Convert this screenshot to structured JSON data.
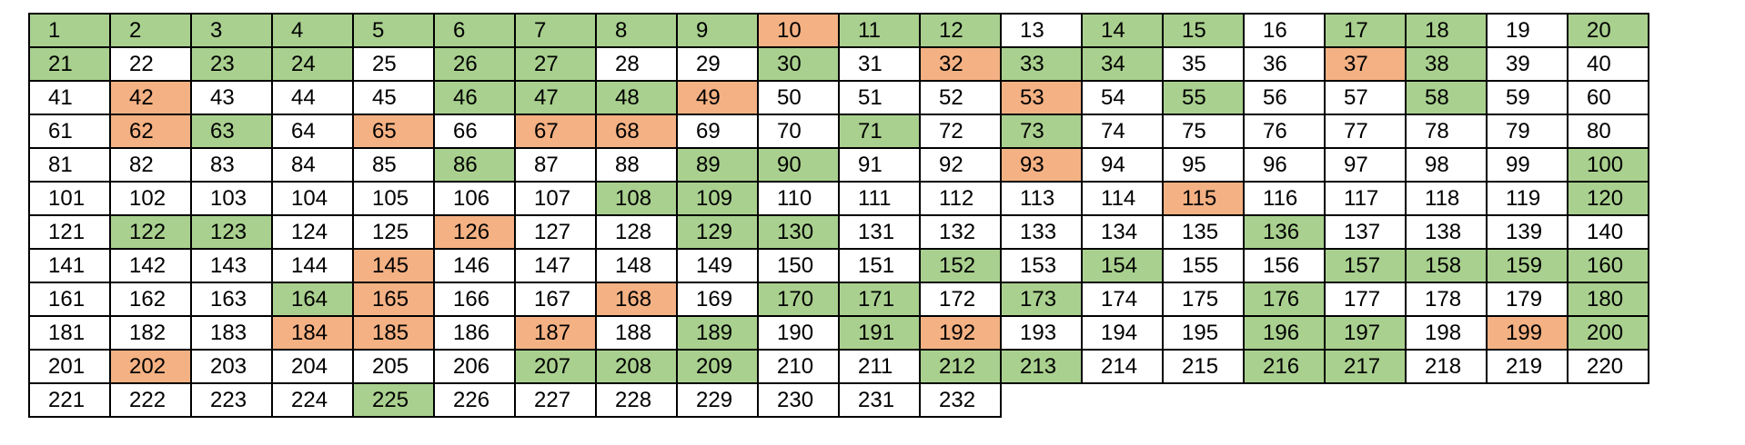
{
  "colors": {
    "green": "#a9d08e",
    "orange": "#f4b183",
    "none": "#ffffff"
  },
  "grid": {
    "rows": [
      [
        {
          "n": "1",
          "c": "green"
        },
        {
          "n": "2",
          "c": "green"
        },
        {
          "n": "3",
          "c": "green"
        },
        {
          "n": "4",
          "c": "green"
        },
        {
          "n": "5",
          "c": "green"
        },
        {
          "n": "6",
          "c": "green"
        },
        {
          "n": "7",
          "c": "green"
        },
        {
          "n": "8",
          "c": "green"
        },
        {
          "n": "9",
          "c": "green"
        },
        {
          "n": "10",
          "c": "orange"
        },
        {
          "n": "11",
          "c": "green"
        },
        {
          "n": "12",
          "c": "green"
        },
        {
          "n": "13",
          "c": "none"
        },
        {
          "n": "14",
          "c": "green"
        },
        {
          "n": "15",
          "c": "green"
        },
        {
          "n": "16",
          "c": "none"
        },
        {
          "n": "17",
          "c": "green"
        },
        {
          "n": "18",
          "c": "green"
        },
        {
          "n": "19",
          "c": "none"
        },
        {
          "n": "20",
          "c": "green"
        }
      ],
      [
        {
          "n": "21",
          "c": "green"
        },
        {
          "n": "22",
          "c": "none"
        },
        {
          "n": "23",
          "c": "green"
        },
        {
          "n": "24",
          "c": "green"
        },
        {
          "n": "25",
          "c": "none"
        },
        {
          "n": "26",
          "c": "green"
        },
        {
          "n": "27",
          "c": "green"
        },
        {
          "n": "28",
          "c": "none"
        },
        {
          "n": "29",
          "c": "none"
        },
        {
          "n": "30",
          "c": "green"
        },
        {
          "n": "31",
          "c": "none"
        },
        {
          "n": "32",
          "c": "orange"
        },
        {
          "n": "33",
          "c": "green"
        },
        {
          "n": "34",
          "c": "green"
        },
        {
          "n": "35",
          "c": "none"
        },
        {
          "n": "36",
          "c": "none"
        },
        {
          "n": "37",
          "c": "orange"
        },
        {
          "n": "38",
          "c": "green"
        },
        {
          "n": "39",
          "c": "none"
        },
        {
          "n": "40",
          "c": "none"
        }
      ],
      [
        {
          "n": "41",
          "c": "none"
        },
        {
          "n": "42",
          "c": "orange"
        },
        {
          "n": "43",
          "c": "none"
        },
        {
          "n": "44",
          "c": "none"
        },
        {
          "n": "45",
          "c": "none"
        },
        {
          "n": "46",
          "c": "green"
        },
        {
          "n": "47",
          "c": "green"
        },
        {
          "n": "48",
          "c": "green"
        },
        {
          "n": "49",
          "c": "orange"
        },
        {
          "n": "50",
          "c": "none"
        },
        {
          "n": "51",
          "c": "none"
        },
        {
          "n": "52",
          "c": "none"
        },
        {
          "n": "53",
          "c": "orange"
        },
        {
          "n": "54",
          "c": "none"
        },
        {
          "n": "55",
          "c": "green"
        },
        {
          "n": "56",
          "c": "none"
        },
        {
          "n": "57",
          "c": "none"
        },
        {
          "n": "58",
          "c": "green"
        },
        {
          "n": "59",
          "c": "none"
        },
        {
          "n": "60",
          "c": "none"
        }
      ],
      [
        {
          "n": "61",
          "c": "none"
        },
        {
          "n": "62",
          "c": "orange"
        },
        {
          "n": "63",
          "c": "green"
        },
        {
          "n": "64",
          "c": "none"
        },
        {
          "n": "65",
          "c": "orange"
        },
        {
          "n": "66",
          "c": "none"
        },
        {
          "n": "67",
          "c": "orange"
        },
        {
          "n": "68",
          "c": "orange"
        },
        {
          "n": "69",
          "c": "none"
        },
        {
          "n": "70",
          "c": "none"
        },
        {
          "n": "71",
          "c": "green"
        },
        {
          "n": "72",
          "c": "none"
        },
        {
          "n": "73",
          "c": "green"
        },
        {
          "n": "74",
          "c": "none"
        },
        {
          "n": "75",
          "c": "none"
        },
        {
          "n": "76",
          "c": "none"
        },
        {
          "n": "77",
          "c": "none"
        },
        {
          "n": "78",
          "c": "none"
        },
        {
          "n": "79",
          "c": "none"
        },
        {
          "n": "80",
          "c": "none"
        }
      ],
      [
        {
          "n": "81",
          "c": "none"
        },
        {
          "n": "82",
          "c": "none"
        },
        {
          "n": "83",
          "c": "none"
        },
        {
          "n": "84",
          "c": "none"
        },
        {
          "n": "85",
          "c": "none"
        },
        {
          "n": "86",
          "c": "green"
        },
        {
          "n": "87",
          "c": "none"
        },
        {
          "n": "88",
          "c": "none"
        },
        {
          "n": "89",
          "c": "green"
        },
        {
          "n": "90",
          "c": "green"
        },
        {
          "n": "91",
          "c": "none"
        },
        {
          "n": "92",
          "c": "none"
        },
        {
          "n": "93",
          "c": "orange"
        },
        {
          "n": "94",
          "c": "none"
        },
        {
          "n": "95",
          "c": "none"
        },
        {
          "n": "96",
          "c": "none"
        },
        {
          "n": "97",
          "c": "none"
        },
        {
          "n": "98",
          "c": "none"
        },
        {
          "n": "99",
          "c": "none"
        },
        {
          "n": "100",
          "c": "green"
        }
      ],
      [
        {
          "n": "101",
          "c": "none"
        },
        {
          "n": "102",
          "c": "none"
        },
        {
          "n": "103",
          "c": "none"
        },
        {
          "n": "104",
          "c": "none"
        },
        {
          "n": "105",
          "c": "none"
        },
        {
          "n": "106",
          "c": "none"
        },
        {
          "n": "107",
          "c": "none"
        },
        {
          "n": "108",
          "c": "green"
        },
        {
          "n": "109",
          "c": "green"
        },
        {
          "n": "110",
          "c": "none"
        },
        {
          "n": "111",
          "c": "none"
        },
        {
          "n": "112",
          "c": "none"
        },
        {
          "n": "113",
          "c": "none"
        },
        {
          "n": "114",
          "c": "none"
        },
        {
          "n": "115",
          "c": "orange"
        },
        {
          "n": "116",
          "c": "none"
        },
        {
          "n": "117",
          "c": "none"
        },
        {
          "n": "118",
          "c": "none"
        },
        {
          "n": "119",
          "c": "none"
        },
        {
          "n": "120",
          "c": "green"
        }
      ],
      [
        {
          "n": "121",
          "c": "none"
        },
        {
          "n": "122",
          "c": "green"
        },
        {
          "n": "123",
          "c": "green"
        },
        {
          "n": "124",
          "c": "none"
        },
        {
          "n": "125",
          "c": "none"
        },
        {
          "n": "126",
          "c": "orange"
        },
        {
          "n": "127",
          "c": "none"
        },
        {
          "n": "128",
          "c": "none"
        },
        {
          "n": "129",
          "c": "green"
        },
        {
          "n": "130",
          "c": "green"
        },
        {
          "n": "131",
          "c": "none"
        },
        {
          "n": "132",
          "c": "none"
        },
        {
          "n": "133",
          "c": "none"
        },
        {
          "n": "134",
          "c": "none"
        },
        {
          "n": "135",
          "c": "none"
        },
        {
          "n": "136",
          "c": "green"
        },
        {
          "n": "137",
          "c": "none"
        },
        {
          "n": "138",
          "c": "none"
        },
        {
          "n": "139",
          "c": "none"
        },
        {
          "n": "140",
          "c": "none"
        }
      ],
      [
        {
          "n": "141",
          "c": "none"
        },
        {
          "n": "142",
          "c": "none"
        },
        {
          "n": "143",
          "c": "none"
        },
        {
          "n": "144",
          "c": "none"
        },
        {
          "n": "145",
          "c": "orange"
        },
        {
          "n": "146",
          "c": "none"
        },
        {
          "n": "147",
          "c": "none"
        },
        {
          "n": "148",
          "c": "none"
        },
        {
          "n": "149",
          "c": "none"
        },
        {
          "n": "150",
          "c": "none"
        },
        {
          "n": "151",
          "c": "none"
        },
        {
          "n": "152",
          "c": "green"
        },
        {
          "n": "153",
          "c": "none"
        },
        {
          "n": "154",
          "c": "green"
        },
        {
          "n": "155",
          "c": "none"
        },
        {
          "n": "156",
          "c": "none"
        },
        {
          "n": "157",
          "c": "green"
        },
        {
          "n": "158",
          "c": "green"
        },
        {
          "n": "159",
          "c": "green"
        },
        {
          "n": "160",
          "c": "green"
        }
      ],
      [
        {
          "n": "161",
          "c": "none"
        },
        {
          "n": "162",
          "c": "none"
        },
        {
          "n": "163",
          "c": "none"
        },
        {
          "n": "164",
          "c": "green"
        },
        {
          "n": "165",
          "c": "orange"
        },
        {
          "n": "166",
          "c": "none"
        },
        {
          "n": "167",
          "c": "none"
        },
        {
          "n": "168",
          "c": "orange"
        },
        {
          "n": "169",
          "c": "none"
        },
        {
          "n": "170",
          "c": "green"
        },
        {
          "n": "171",
          "c": "green"
        },
        {
          "n": "172",
          "c": "none"
        },
        {
          "n": "173",
          "c": "green"
        },
        {
          "n": "174",
          "c": "none"
        },
        {
          "n": "175",
          "c": "none"
        },
        {
          "n": "176",
          "c": "green"
        },
        {
          "n": "177",
          "c": "none"
        },
        {
          "n": "178",
          "c": "none"
        },
        {
          "n": "179",
          "c": "none"
        },
        {
          "n": "180",
          "c": "green"
        }
      ],
      [
        {
          "n": "181",
          "c": "none"
        },
        {
          "n": "182",
          "c": "none"
        },
        {
          "n": "183",
          "c": "none"
        },
        {
          "n": "184",
          "c": "orange"
        },
        {
          "n": "185",
          "c": "orange"
        },
        {
          "n": "186",
          "c": "none"
        },
        {
          "n": "187",
          "c": "orange"
        },
        {
          "n": "188",
          "c": "none"
        },
        {
          "n": "189",
          "c": "green"
        },
        {
          "n": "190",
          "c": "none"
        },
        {
          "n": "191",
          "c": "green"
        },
        {
          "n": "192",
          "c": "orange"
        },
        {
          "n": "193",
          "c": "none"
        },
        {
          "n": "194",
          "c": "none"
        },
        {
          "n": "195",
          "c": "none"
        },
        {
          "n": "196",
          "c": "green"
        },
        {
          "n": "197",
          "c": "green"
        },
        {
          "n": "198",
          "c": "none"
        },
        {
          "n": "199",
          "c": "orange"
        },
        {
          "n": "200",
          "c": "green"
        }
      ],
      [
        {
          "n": "201",
          "c": "none"
        },
        {
          "n": "202",
          "c": "orange"
        },
        {
          "n": "203",
          "c": "none"
        },
        {
          "n": "204",
          "c": "none"
        },
        {
          "n": "205",
          "c": "none"
        },
        {
          "n": "206",
          "c": "none"
        },
        {
          "n": "207",
          "c": "green"
        },
        {
          "n": "208",
          "c": "green"
        },
        {
          "n": "209",
          "c": "green"
        },
        {
          "n": "210",
          "c": "none"
        },
        {
          "n": "211",
          "c": "none"
        },
        {
          "n": "212",
          "c": "green"
        },
        {
          "n": "213",
          "c": "green"
        },
        {
          "n": "214",
          "c": "none"
        },
        {
          "n": "215",
          "c": "none"
        },
        {
          "n": "216",
          "c": "green"
        },
        {
          "n": "217",
          "c": "green"
        },
        {
          "n": "218",
          "c": "none"
        },
        {
          "n": "219",
          "c": "none"
        },
        {
          "n": "220",
          "c": "none"
        }
      ],
      [
        {
          "n": "221",
          "c": "none"
        },
        {
          "n": "222",
          "c": "none"
        },
        {
          "n": "223",
          "c": "none"
        },
        {
          "n": "224",
          "c": "none"
        },
        {
          "n": "225",
          "c": "green"
        },
        {
          "n": "226",
          "c": "none"
        },
        {
          "n": "227",
          "c": "none"
        },
        {
          "n": "228",
          "c": "none"
        },
        {
          "n": "229",
          "c": "none"
        },
        {
          "n": "230",
          "c": "none"
        },
        {
          "n": "231",
          "c": "none"
        },
        {
          "n": "232",
          "c": "none"
        }
      ]
    ]
  }
}
